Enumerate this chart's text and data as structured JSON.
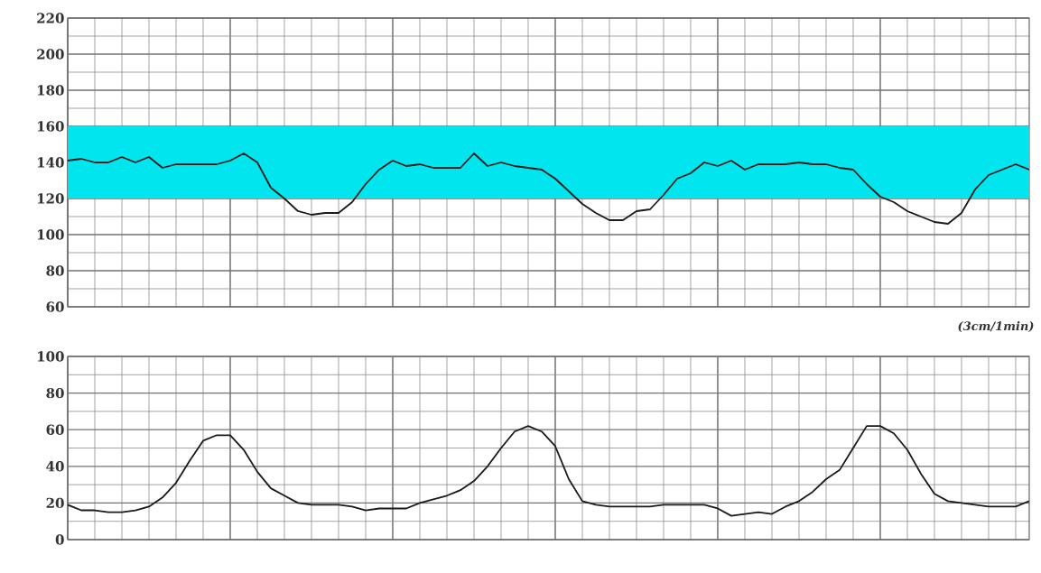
{
  "chart_data": [
    {
      "type": "line",
      "categories": [
        null,
        null,
        null,
        null,
        null,
        null,
        null,
        null,
        null,
        null,
        null,
        null,
        null,
        null,
        null,
        null,
        null,
        null,
        null,
        null,
        null,
        null,
        null,
        null,
        null,
        null,
        null,
        null,
        null,
        null,
        null,
        null,
        null,
        null,
        null,
        null,
        null,
        null,
        null,
        null,
        null,
        null,
        null,
        null,
        null,
        null,
        null,
        null,
        null,
        null,
        null,
        null,
        null,
        null,
        null,
        null,
        null,
        null,
        null,
        null,
        null,
        null,
        null,
        null,
        null,
        null,
        null,
        null,
        null,
        null,
        null,
        null
      ],
      "series": [
        {
          "color": "#1a1a1a",
          "values": [
            141,
            142,
            140,
            140,
            143,
            140,
            143,
            137,
            139,
            139,
            139,
            139,
            141,
            145,
            140,
            126,
            120,
            113,
            111,
            112,
            112,
            118,
            128,
            136,
            141,
            138,
            139,
            137,
            137,
            137,
            145,
            138,
            140,
            138,
            137,
            136,
            131,
            124,
            117,
            112,
            108,
            108,
            113,
            114,
            122,
            131,
            134,
            140,
            138,
            141,
            136,
            139,
            139,
            139,
            140,
            139,
            139,
            137,
            136,
            128,
            121,
            118,
            113,
            110,
            107,
            106,
            112,
            125,
            133,
            136,
            139,
            136
          ]
        }
      ],
      "ylim": [
        60,
        220
      ],
      "yticks": [
        60,
        80,
        100,
        120,
        140,
        160,
        180,
        200,
        220
      ],
      "bands": [
        {
          "axis": "y",
          "from": 120,
          "to": 160,
          "color": "#00e5ee"
        }
      ],
      "grid": true,
      "tick_labels": "y",
      "annotations": [
        "(3cm/1min)"
      ]
    },
    {
      "type": "line",
      "categories": [
        null,
        null,
        null,
        null,
        null,
        null,
        null,
        null,
        null,
        null,
        null,
        null,
        null,
        null,
        null,
        null,
        null,
        null,
        null,
        null,
        null,
        null,
        null,
        null,
        null,
        null,
        null,
        null,
        null,
        null,
        null,
        null,
        null,
        null,
        null,
        null,
        null,
        null,
        null,
        null,
        null,
        null,
        null,
        null,
        null,
        null,
        null,
        null,
        null,
        null,
        null,
        null,
        null,
        null,
        null,
        null,
        null,
        null,
        null,
        null,
        null,
        null,
        null,
        null,
        null,
        null,
        null,
        null,
        null,
        null,
        null,
        null
      ],
      "series": [
        {
          "color": "#1a1a1a",
          "values": [
            19,
            16,
            16,
            15,
            15,
            16,
            18,
            23,
            31,
            43,
            54,
            57,
            57,
            49,
            37,
            28,
            24,
            20,
            19,
            19,
            19,
            18,
            16,
            17,
            17,
            17,
            20,
            22,
            24,
            27,
            32,
            40,
            50,
            59,
            62,
            59,
            51,
            33,
            21,
            19,
            18,
            18,
            18,
            18,
            19,
            19,
            19,
            19,
            17,
            13,
            14,
            15,
            14,
            18,
            21,
            26,
            33,
            38,
            50,
            62,
            62,
            58,
            49,
            36,
            25,
            21,
            20,
            19,
            18,
            18,
            18,
            21
          ]
        }
      ],
      "ylim": [
        0,
        100
      ],
      "yticks": [
        0,
        20,
        40,
        60,
        80,
        100
      ],
      "grid": true,
      "tick_labels": "y"
    }
  ]
}
